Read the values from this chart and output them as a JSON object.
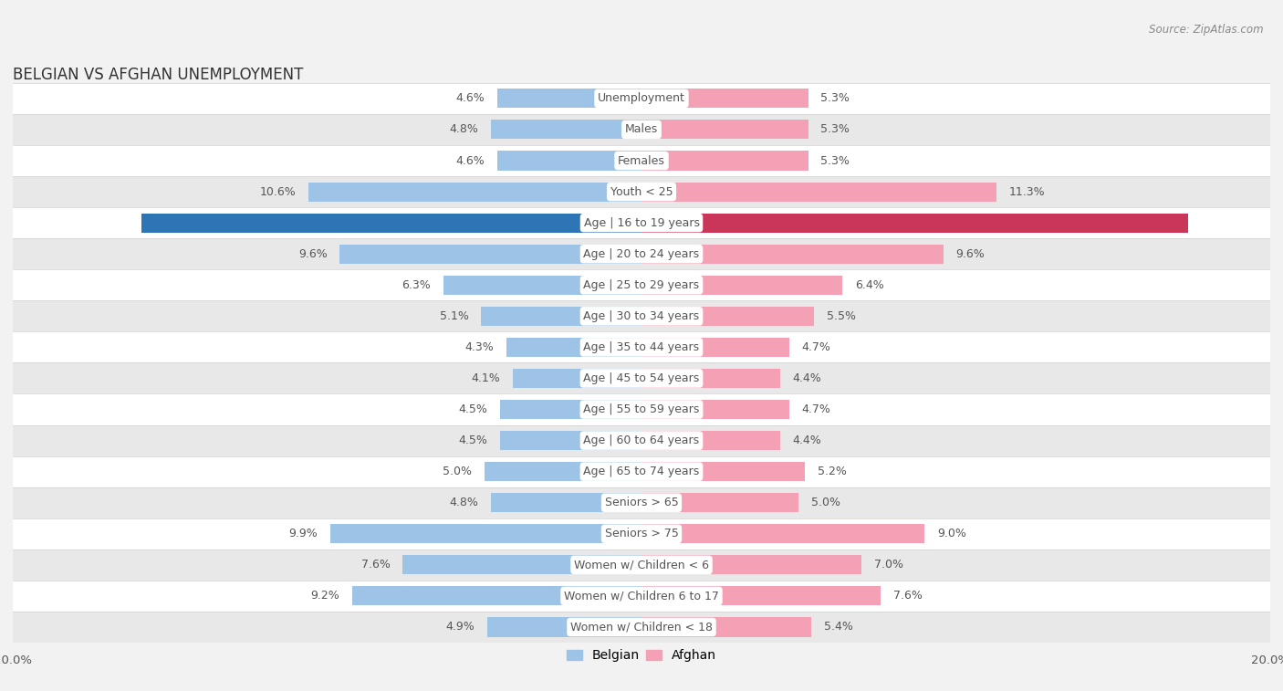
{
  "title": "BELGIAN VS AFGHAN UNEMPLOYMENT",
  "source": "Source: ZipAtlas.com",
  "categories": [
    "Unemployment",
    "Males",
    "Females",
    "Youth < 25",
    "Age | 16 to 19 years",
    "Age | 20 to 24 years",
    "Age | 25 to 29 years",
    "Age | 30 to 34 years",
    "Age | 35 to 44 years",
    "Age | 45 to 54 years",
    "Age | 55 to 59 years",
    "Age | 60 to 64 years",
    "Age | 65 to 74 years",
    "Seniors > 65",
    "Seniors > 75",
    "Women w/ Children < 6",
    "Women w/ Children 6 to 17",
    "Women w/ Children < 18"
  ],
  "belgian_values": [
    4.6,
    4.8,
    4.6,
    10.6,
    15.9,
    9.6,
    6.3,
    5.1,
    4.3,
    4.1,
    4.5,
    4.5,
    5.0,
    4.8,
    9.9,
    7.6,
    9.2,
    4.9
  ],
  "afghan_values": [
    5.3,
    5.3,
    5.3,
    11.3,
    17.4,
    9.6,
    6.4,
    5.5,
    4.7,
    4.4,
    4.7,
    4.4,
    5.2,
    5.0,
    9.0,
    7.0,
    7.6,
    5.4
  ],
  "belgian_color": "#9dc3e6",
  "afghan_color": "#f4a0b5",
  "belgian_highlight_color": "#2e75b6",
  "afghan_highlight_color": "#c9365a",
  "highlight_rows": [
    4
  ],
  "axis_limit": 20.0,
  "background_color": "#f2f2f2",
  "row_bg_light": "#ffffff",
  "row_bg_dark": "#e8e8e8",
  "row_border_color": "#d0d0d0",
  "legend_labels": [
    "Belgian",
    "Afghan"
  ],
  "bar_height": 0.62,
  "label_fontsize": 9.0,
  "value_fontsize": 9.0,
  "title_fontsize": 12,
  "label_pill_color": "#ffffff",
  "label_text_color": "#555555",
  "value_text_color": "#555555"
}
